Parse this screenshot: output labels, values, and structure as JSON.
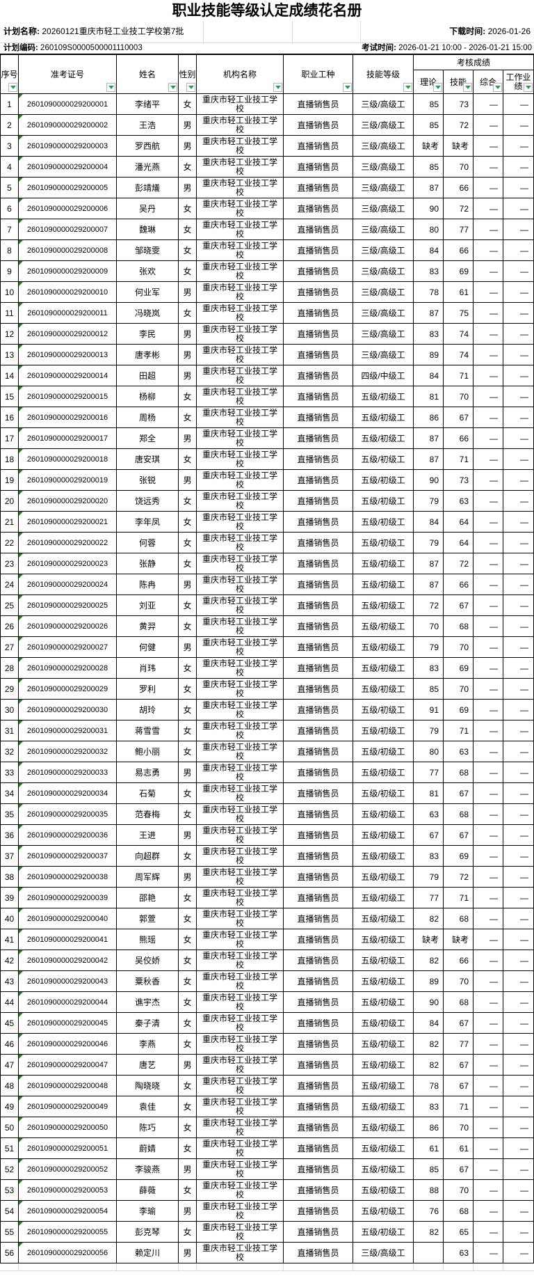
{
  "app": {
    "title": "职业技能等级认定成绩花名册"
  },
  "meta": {
    "plan_name_label": "计划名称:",
    "plan_name": "20260121重庆市轻工业技工学校第7批",
    "download_time_label": "下载时间:",
    "download_time": "2026-01-26",
    "plan_code_label": "计划编码:",
    "plan_code": "260109S0000500001110003",
    "exam_time_label": "考试时间:",
    "exam_time": "2026-01-21 10:00 - 2026-01-21 15:00"
  },
  "table": {
    "columns": [
      "序号",
      "准考证号",
      "姓名",
      "性别",
      "机构名称",
      "职业工种",
      "技能等级"
    ],
    "score_group_label": "考核成绩",
    "score_columns": [
      "理论",
      "技能",
      "综合",
      "工作业绩"
    ],
    "absent_text": "缺考",
    "dash_text": "—",
    "rows": [
      [
        "1",
        "2601090000029200001",
        "李绪平",
        "女",
        "重庆市轻工业技工学校",
        "直播销售员",
        "三级/高级工",
        "85",
        "73",
        "—",
        "—"
      ],
      [
        "2",
        "2601090000029200002",
        "王浩",
        "男",
        "重庆市轻工业技工学校",
        "直播销售员",
        "三级/高级工",
        "85",
        "72",
        "—",
        "—"
      ],
      [
        "3",
        "2601090000029200003",
        "罗西航",
        "男",
        "重庆市轻工业技工学校",
        "直播销售员",
        "三级/高级工",
        "缺考",
        "缺考",
        "—",
        "—"
      ],
      [
        "4",
        "2601090000029200004",
        "潘光燕",
        "女",
        "重庆市轻工业技工学校",
        "直播销售员",
        "三级/高级工",
        "85",
        "70",
        "—",
        "—"
      ],
      [
        "5",
        "2601090000029200005",
        "彭靖燨",
        "男",
        "重庆市轻工业技工学校",
        "直播销售员",
        "三级/高级工",
        "87",
        "66",
        "—",
        "—"
      ],
      [
        "6",
        "2601090000029200006",
        "吴丹",
        "女",
        "重庆市轻工业技工学校",
        "直播销售员",
        "三级/高级工",
        "90",
        "72",
        "—",
        "—"
      ],
      [
        "7",
        "2601090000029200007",
        "魏琳",
        "女",
        "重庆市轻工业技工学校",
        "直播销售员",
        "三级/高级工",
        "80",
        "77",
        "—",
        "—"
      ],
      [
        "8",
        "2601090000029200008",
        "邹晓雯",
        "女",
        "重庆市轻工业技工学校",
        "直播销售员",
        "三级/高级工",
        "84",
        "66",
        "—",
        "—"
      ],
      [
        "9",
        "2601090000029200009",
        "张欢",
        "女",
        "重庆市轻工业技工学校",
        "直播销售员",
        "三级/高级工",
        "83",
        "69",
        "—",
        "—"
      ],
      [
        "10",
        "2601090000029200010",
        "何业军",
        "男",
        "重庆市轻工业技工学校",
        "直播销售员",
        "三级/高级工",
        "78",
        "61",
        "—",
        "—"
      ],
      [
        "11",
        "2601090000029200011",
        "冯晓岚",
        "女",
        "重庆市轻工业技工学校",
        "直播销售员",
        "三级/高级工",
        "87",
        "75",
        "—",
        "—"
      ],
      [
        "12",
        "2601090000029200012",
        "李民",
        "男",
        "重庆市轻工业技工学校",
        "直播销售员",
        "三级/高级工",
        "83",
        "74",
        "—",
        "—"
      ],
      [
        "13",
        "2601090000029200013",
        "唐孝彬",
        "男",
        "重庆市轻工业技工学校",
        "直播销售员",
        "三级/高级工",
        "89",
        "74",
        "—",
        "—"
      ],
      [
        "14",
        "2601090000029200014",
        "田超",
        "男",
        "重庆市轻工业技工学校",
        "直播销售员",
        "四级/中级工",
        "84",
        "71",
        "—",
        "—"
      ],
      [
        "15",
        "2601090000029200015",
        "杨柳",
        "女",
        "重庆市轻工业技工学校",
        "直播销售员",
        "五级/初级工",
        "81",
        "70",
        "—",
        "—"
      ],
      [
        "16",
        "2601090000029200016",
        "周杨",
        "女",
        "重庆市轻工业技工学校",
        "直播销售员",
        "五级/初级工",
        "86",
        "67",
        "—",
        "—"
      ],
      [
        "17",
        "2601090000029200017",
        "郑全",
        "男",
        "重庆市轻工业技工学校",
        "直播销售员",
        "五级/初级工",
        "87",
        "66",
        "—",
        "—"
      ],
      [
        "18",
        "2601090000029200018",
        "唐安琪",
        "女",
        "重庆市轻工业技工学校",
        "直播销售员",
        "五级/初级工",
        "87",
        "71",
        "—",
        "—"
      ],
      [
        "19",
        "2601090000029200019",
        "张锐",
        "男",
        "重庆市轻工业技工学校",
        "直播销售员",
        "五级/初级工",
        "90",
        "73",
        "—",
        "—"
      ],
      [
        "20",
        "2601090000029200020",
        "饶远秀",
        "女",
        "重庆市轻工业技工学校",
        "直播销售员",
        "五级/初级工",
        "79",
        "63",
        "—",
        "—"
      ],
      [
        "21",
        "2601090000029200021",
        "李年凤",
        "女",
        "重庆市轻工业技工学校",
        "直播销售员",
        "五级/初级工",
        "84",
        "64",
        "—",
        "—"
      ],
      [
        "22",
        "2601090000029200022",
        "何蓉",
        "女",
        "重庆市轻工业技工学校",
        "直播销售员",
        "五级/初级工",
        "79",
        "64",
        "—",
        "—"
      ],
      [
        "23",
        "2601090000029200023",
        "张静",
        "女",
        "重庆市轻工业技工学校",
        "直播销售员",
        "五级/初级工",
        "87",
        "72",
        "—",
        "—"
      ],
      [
        "24",
        "2601090000029200024",
        "陈冉",
        "男",
        "重庆市轻工业技工学校",
        "直播销售员",
        "五级/初级工",
        "87",
        "66",
        "—",
        "—"
      ],
      [
        "25",
        "2601090000029200025",
        "刘亚",
        "女",
        "重庆市轻工业技工学校",
        "直播销售员",
        "五级/初级工",
        "72",
        "67",
        "—",
        "—"
      ],
      [
        "26",
        "2601090000029200026",
        "黄羿",
        "女",
        "重庆市轻工业技工学校",
        "直播销售员",
        "五级/初级工",
        "70",
        "68",
        "—",
        "—"
      ],
      [
        "27",
        "2601090000029200027",
        "何健",
        "男",
        "重庆市轻工业技工学校",
        "直播销售员",
        "五级/初级工",
        "79",
        "70",
        "—",
        "—"
      ],
      [
        "28",
        "2601090000029200028",
        "肖玮",
        "女",
        "重庆市轻工业技工学校",
        "直播销售员",
        "五级/初级工",
        "83",
        "69",
        "—",
        "—"
      ],
      [
        "29",
        "2601090000029200029",
        "罗利",
        "女",
        "重庆市轻工业技工学校",
        "直播销售员",
        "五级/初级工",
        "85",
        "70",
        "—",
        "—"
      ],
      [
        "30",
        "2601090000029200030",
        "胡玲",
        "女",
        "重庆市轻工业技工学校",
        "直播销售员",
        "五级/初级工",
        "91",
        "69",
        "—",
        "—"
      ],
      [
        "31",
        "2601090000029200031",
        "蒋雪雪",
        "女",
        "重庆市轻工业技工学校",
        "直播销售员",
        "五级/初级工",
        "79",
        "71",
        "—",
        "—"
      ],
      [
        "32",
        "2601090000029200032",
        "鲍小丽",
        "女",
        "重庆市轻工业技工学校",
        "直播销售员",
        "五级/初级工",
        "80",
        "63",
        "—",
        "—"
      ],
      [
        "33",
        "2601090000029200033",
        "易志勇",
        "男",
        "重庆市轻工业技工学校",
        "直播销售员",
        "五级/初级工",
        "77",
        "68",
        "—",
        "—"
      ],
      [
        "34",
        "2601090000029200034",
        "石菊",
        "女",
        "重庆市轻工业技工学校",
        "直播销售员",
        "五级/初级工",
        "81",
        "67",
        "—",
        "—"
      ],
      [
        "35",
        "2601090000029200035",
        "范春梅",
        "女",
        "重庆市轻工业技工学校",
        "直播销售员",
        "五级/初级工",
        "63",
        "68",
        "—",
        "—"
      ],
      [
        "36",
        "2601090000029200036",
        "王进",
        "男",
        "重庆市轻工业技工学校",
        "直播销售员",
        "五级/初级工",
        "67",
        "67",
        "—",
        "—"
      ],
      [
        "37",
        "2601090000029200037",
        "向超群",
        "女",
        "重庆市轻工业技工学校",
        "直播销售员",
        "五级/初级工",
        "83",
        "69",
        "—",
        "—"
      ],
      [
        "38",
        "2601090000029200038",
        "周军辉",
        "男",
        "重庆市轻工业技工学校",
        "直播销售员",
        "五级/初级工",
        "79",
        "72",
        "—",
        "—"
      ],
      [
        "39",
        "2601090000029200039",
        "邵艳",
        "女",
        "重庆市轻工业技工学校",
        "直播销售员",
        "五级/初级工",
        "77",
        "71",
        "—",
        "—"
      ],
      [
        "40",
        "2601090000029200040",
        "郭萱",
        "女",
        "重庆市轻工业技工学校",
        "直播销售员",
        "五级/初级工",
        "82",
        "68",
        "—",
        "—"
      ],
      [
        "41",
        "2601090000029200041",
        "熊瑶",
        "女",
        "重庆市轻工业技工学校",
        "直播销售员",
        "五级/初级工",
        "缺考",
        "缺考",
        "—",
        "—"
      ],
      [
        "42",
        "2601090000029200042",
        "吴佼娇",
        "女",
        "重庆市轻工业技工学校",
        "直播销售员",
        "五级/初级工",
        "82",
        "66",
        "—",
        "—"
      ],
      [
        "43",
        "2601090000029200043",
        "粟秋香",
        "女",
        "重庆市轻工业技工学校",
        "直播销售员",
        "五级/初级工",
        "89",
        "70",
        "—",
        "—"
      ],
      [
        "44",
        "2601090000029200044",
        "谯宇杰",
        "女",
        "重庆市轻工业技工学校",
        "直播销售员",
        "五级/初级工",
        "90",
        "68",
        "—",
        "—"
      ],
      [
        "45",
        "2601090000029200045",
        "秦子清",
        "女",
        "重庆市轻工业技工学校",
        "直播销售员",
        "五级/初级工",
        "84",
        "67",
        "—",
        "—"
      ],
      [
        "46",
        "2601090000029200046",
        "李燕",
        "女",
        "重庆市轻工业技工学校",
        "直播销售员",
        "五级/初级工",
        "82",
        "77",
        "—",
        "—"
      ],
      [
        "47",
        "2601090000029200047",
        "唐艺",
        "男",
        "重庆市轻工业技工学校",
        "直播销售员",
        "五级/初级工",
        "82",
        "67",
        "—",
        "—"
      ],
      [
        "48",
        "2601090000029200048",
        "陶晓晓",
        "女",
        "重庆市轻工业技工学校",
        "直播销售员",
        "五级/初级工",
        "78",
        "67",
        "—",
        "—"
      ],
      [
        "49",
        "2601090000029200049",
        "袁佳",
        "女",
        "重庆市轻工业技工学校",
        "直播销售员",
        "五级/初级工",
        "83",
        "71",
        "—",
        "—"
      ],
      [
        "50",
        "2601090000029200050",
        "陈巧",
        "女",
        "重庆市轻工业技工学校",
        "直播销售员",
        "五级/初级工",
        "86",
        "70",
        "—",
        "—"
      ],
      [
        "51",
        "2601090000029200051",
        "蔚婧",
        "女",
        "重庆市轻工业技工学校",
        "直播销售员",
        "五级/初级工",
        "61",
        "61",
        "—",
        "—"
      ],
      [
        "52",
        "2601090000029200052",
        "李骏燕",
        "男",
        "重庆市轻工业技工学校",
        "直播销售员",
        "五级/初级工",
        "85",
        "67",
        "—",
        "—"
      ],
      [
        "53",
        "2601090000029200053",
        "薛薇",
        "女",
        "重庆市轻工业技工学校",
        "直播销售员",
        "五级/初级工",
        "88",
        "70",
        "—",
        "—"
      ],
      [
        "54",
        "2601090000029200054",
        "李瑜",
        "男",
        "重庆市轻工业技工学校",
        "直播销售员",
        "五级/初级工",
        "76",
        "68",
        "—",
        "—"
      ],
      [
        "55",
        "2601090000029200055",
        "彭克琴",
        "女",
        "重庆市轻工业技工学校",
        "直播销售员",
        "五级/初级工",
        "82",
        "65",
        "—",
        "—"
      ],
      [
        "56",
        "2601090000029200056",
        "赖定川",
        "男",
        "重庆市轻工业技工学校",
        "直播销售员",
        "三级/高级工",
        "",
        "63",
        "—",
        "—"
      ]
    ]
  },
  "colors": {
    "border": "#000000",
    "light_grid": "#dcdcdc",
    "filter_green": "#26a050",
    "corner_flag_green": "#1e7a1e",
    "background": "#ffffff"
  }
}
